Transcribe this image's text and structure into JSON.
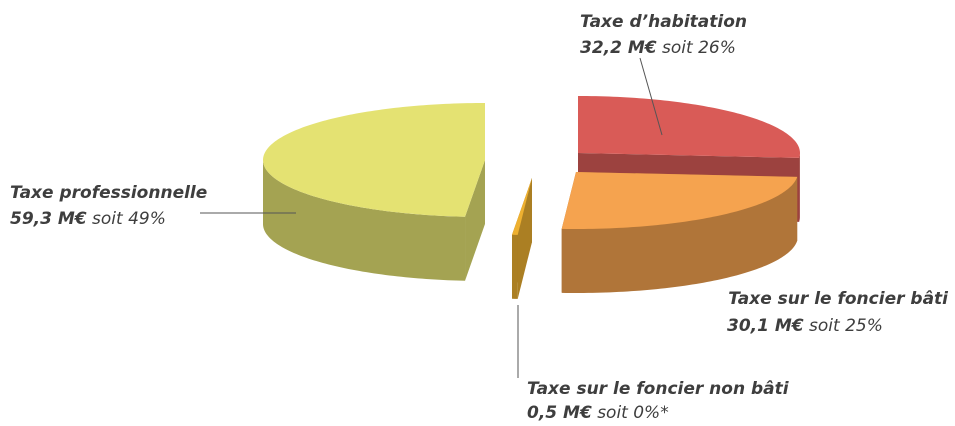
{
  "chart_data": {
    "type": "pie",
    "categories": [
      "Taxe d’habitation",
      "Taxe sur le foncier bâti",
      "Taxe sur le foncier non bâti",
      "Taxe professionnelle"
    ],
    "values": [
      32.2,
      30.1,
      0.5,
      59.3
    ],
    "value_labels": [
      "32,2 M€",
      "30,1 M€",
      "0,5 M€",
      "59,3 M€"
    ],
    "share_labels": [
      "soit 26%",
      "soit 25%",
      "soit 0%*",
      "soit 49%"
    ],
    "colors": [
      "#d95b57",
      "#f5a34f",
      "#eeb030",
      "#e4e272"
    ]
  }
}
